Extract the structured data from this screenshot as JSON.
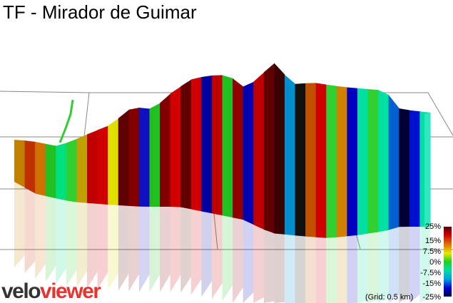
{
  "title": "TF - Mirador de Guimar",
  "legend": {
    "ticks": [
      "25%",
      "15%",
      "7.5%",
      "0%",
      "-7.5%",
      "-15%",
      "-25%"
    ]
  },
  "grid_note": "(Grid: 0.5 km)",
  "logo": {
    "part1": "velo",
    "part2": "viewer"
  }
}
